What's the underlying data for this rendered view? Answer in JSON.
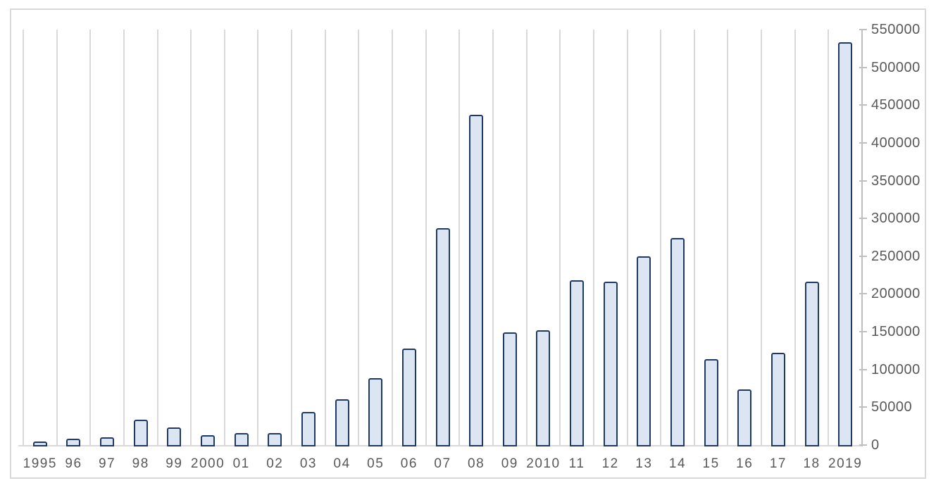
{
  "chart_data": {
    "type": "bar",
    "title": "",
    "xlabel": "",
    "ylabel": "",
    "categories": [
      "1995",
      "96",
      "97",
      "98",
      "99",
      "2000",
      "01",
      "02",
      "03",
      "04",
      "05",
      "06",
      "07",
      "08",
      "09",
      "2010",
      "11",
      "12",
      "13",
      "14",
      "15",
      "16",
      "17",
      "18",
      "2019"
    ],
    "values": [
      5000,
      8000,
      10000,
      34000,
      23000,
      13000,
      16000,
      16000,
      44000,
      61000,
      89000,
      128000,
      287000,
      437000,
      149000,
      152000,
      218000,
      216000,
      250000,
      274000,
      114000,
      74000,
      122000,
      216000,
      533000
    ],
    "ylim": [
      0,
      550000
    ],
    "ytick_interval": 50000,
    "ytick_labels": [
      "0",
      "50000",
      "100000",
      "150000",
      "200000",
      "250000",
      "300000",
      "350000",
      "400000",
      "450000",
      "500000",
      "550000"
    ],
    "y_axis_position": "right",
    "grid": "vertical-only",
    "legend": "none",
    "colors": {
      "bar_fill": "#dce6f2",
      "bar_border": "#1f3864",
      "gridline": "#d9d9d9",
      "axis_line": "#bfbfbf",
      "label_text": "#595959",
      "frame_border": "#d9d9d9",
      "background": "#ffffff"
    }
  }
}
